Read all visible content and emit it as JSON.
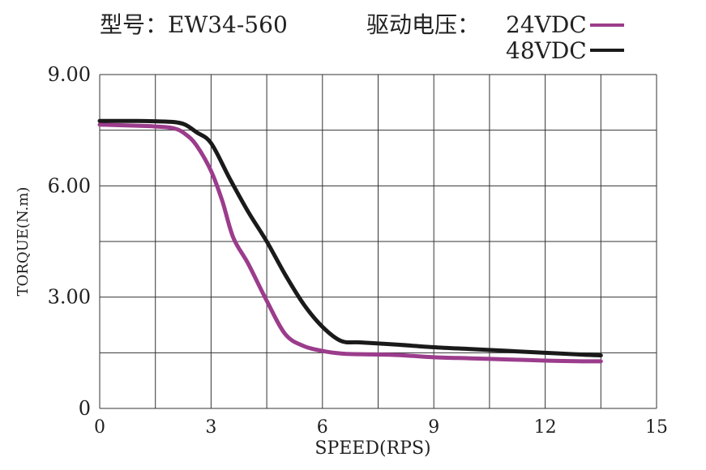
{
  "chart_data": {
    "type": "line",
    "title": "型号：EW34-560",
    "legend_title": "驱动电压：",
    "xlabel": "SPEED(RPS)",
    "ylabel": "TORQUE(N.m)",
    "xlim": [
      0,
      15
    ],
    "ylim": [
      0,
      9
    ],
    "x_ticks": [
      0,
      3,
      6,
      9,
      12,
      15
    ],
    "x_tick_labels": [
      "0",
      "3",
      "6",
      "9",
      "12",
      "15"
    ],
    "y_ticks": [
      0,
      3,
      6,
      9
    ],
    "y_tick_labels": [
      "0",
      "3.00",
      "6.00",
      "9.00"
    ],
    "grid": true,
    "legend_position": "top-right",
    "series": [
      {
        "name": "24VDC",
        "color": "#9b3c8c",
        "points": [
          [
            0,
            7.65
          ],
          [
            1,
            7.62
          ],
          [
            1.5,
            7.6
          ],
          [
            2,
            7.55
          ],
          [
            2.3,
            7.4
          ],
          [
            2.6,
            7.1
          ],
          [
            3,
            6.4
          ],
          [
            3.3,
            5.6
          ],
          [
            3.6,
            4.6
          ],
          [
            4,
            3.9
          ],
          [
            4.5,
            2.9
          ],
          [
            5,
            2.0
          ],
          [
            5.5,
            1.68
          ],
          [
            6,
            1.55
          ],
          [
            6.5,
            1.48
          ],
          [
            7,
            1.46
          ],
          [
            8,
            1.44
          ],
          [
            9,
            1.38
          ],
          [
            10,
            1.35
          ],
          [
            11,
            1.32
          ],
          [
            12,
            1.29
          ],
          [
            13,
            1.27
          ],
          [
            13.5,
            1.27
          ]
        ]
      },
      {
        "name": "48VDC",
        "color": "#1a1a1a",
        "points": [
          [
            0,
            7.75
          ],
          [
            1,
            7.75
          ],
          [
            1.5,
            7.74
          ],
          [
            2,
            7.72
          ],
          [
            2.3,
            7.65
          ],
          [
            2.6,
            7.45
          ],
          [
            3,
            7.15
          ],
          [
            3.5,
            6.2
          ],
          [
            4,
            5.3
          ],
          [
            4.5,
            4.5
          ],
          [
            5,
            3.6
          ],
          [
            5.5,
            2.8
          ],
          [
            6,
            2.2
          ],
          [
            6.5,
            1.82
          ],
          [
            7,
            1.78
          ],
          [
            8,
            1.72
          ],
          [
            9,
            1.65
          ],
          [
            10,
            1.6
          ],
          [
            11,
            1.55
          ],
          [
            12,
            1.5
          ],
          [
            13,
            1.45
          ],
          [
            13.5,
            1.43
          ]
        ]
      }
    ]
  }
}
